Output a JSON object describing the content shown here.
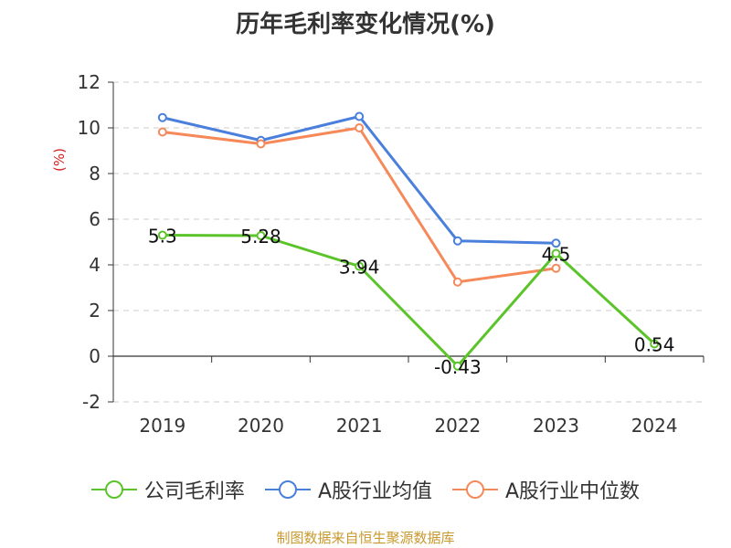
{
  "chart_data": {
    "type": "line",
    "title": "历年毛利率变化情况(%)",
    "ylabel": "(%)",
    "categories": [
      "2019",
      "2020",
      "2021",
      "2022",
      "2023",
      "2024"
    ],
    "ylim": [
      -2,
      12
    ],
    "yticks": [
      -2,
      0,
      2,
      4,
      6,
      8,
      10,
      12
    ],
    "grid": true,
    "legend_position": "bottom",
    "series": [
      {
        "name": "公司毛利率",
        "color": "#5cc42b",
        "values": [
          5.3,
          5.28,
          3.94,
          -0.43,
          4.5,
          0.54
        ],
        "labels": [
          "5.3",
          "5.28",
          "3.94",
          "-0.43",
          "4.5",
          "0.54"
        ]
      },
      {
        "name": "A股行业均值",
        "color": "#4a7fdc",
        "values": [
          10.45,
          9.45,
          10.5,
          5.05,
          4.95,
          null
        ]
      },
      {
        "name": "A股行业中位数",
        "color": "#f5895a",
        "values": [
          9.82,
          9.3,
          10.0,
          3.25,
          3.85,
          null
        ]
      }
    ]
  },
  "source_note": "制图数据来自恒生聚源数据库"
}
